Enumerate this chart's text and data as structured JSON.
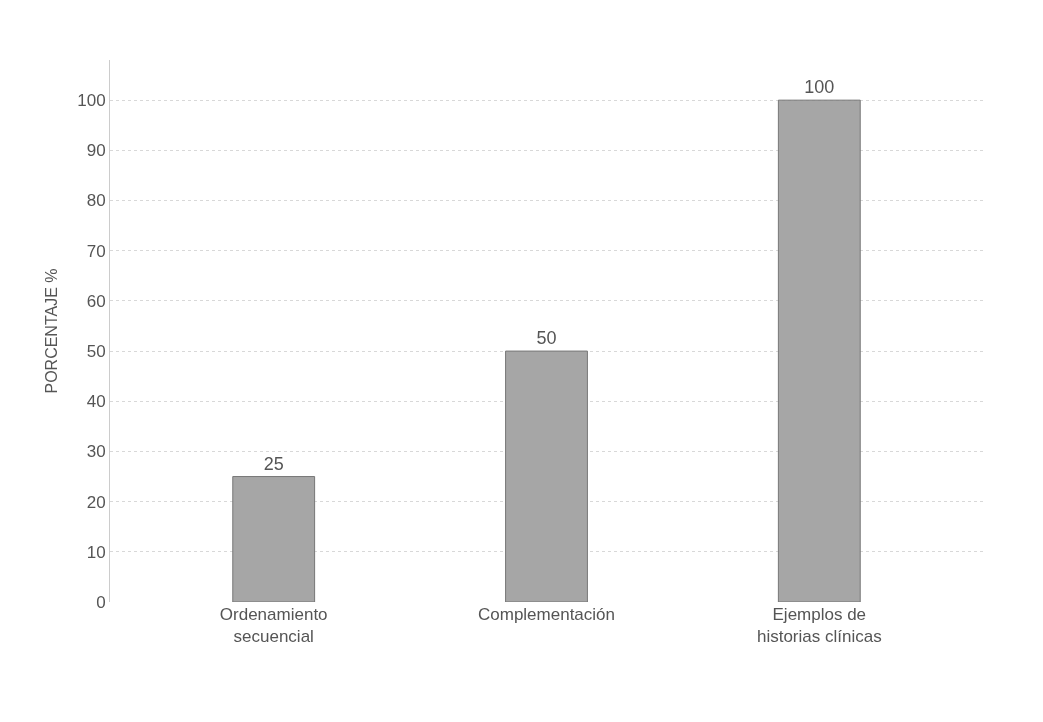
{
  "chart_data": {
    "type": "bar",
    "ylabel": "PORCENTAJE %",
    "categories": [
      "Ordenamiento secuencial",
      "Complementación",
      "Ejemplos de historias clínicas"
    ],
    "values": [
      25,
      50,
      100
    ],
    "color": "#a6a6a6",
    "ylim": [
      0,
      108
    ],
    "yticks": [
      0,
      10,
      20,
      30,
      40,
      50,
      60,
      70,
      80,
      90,
      100
    ],
    "grid": "y",
    "data_labels": true
  }
}
